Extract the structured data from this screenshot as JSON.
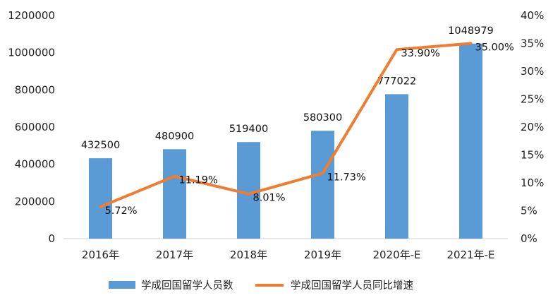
{
  "chart_data": {
    "type": "bar+line",
    "categories": [
      "2016年",
      "2017年",
      "2018年",
      "2019年",
      "2020年-E",
      "2021年-E"
    ],
    "series": [
      {
        "name": "学成回国留学人员数",
        "type": "bar",
        "axis": "left",
        "values": [
          432500,
          480900,
          519400,
          580300,
          777022,
          1048979
        ],
        "labels": [
          "432500",
          "480900",
          "519400",
          "580300",
          "777022",
          "1048979"
        ],
        "color": "#5b9bd5"
      },
      {
        "name": "学成回国留学人员同比增速",
        "type": "line",
        "axis": "right",
        "values": [
          5.72,
          11.19,
          8.01,
          11.73,
          33.9,
          35.0
        ],
        "labels": [
          "5.72%",
          "11.19%",
          "8.01%",
          "11.73%",
          "33.90%",
          "35.00%"
        ],
        "color": "#ed7d31"
      }
    ],
    "y_left": {
      "ylim": [
        0,
        1200000
      ],
      "ticks": [
        "0",
        "200000",
        "400000",
        "600000",
        "800000",
        "1000000",
        "1200000"
      ]
    },
    "y_right": {
      "ylim": [
        0,
        40
      ],
      "ticks": [
        "0%",
        "5%",
        "10%",
        "15%",
        "20%",
        "25%",
        "30%",
        "35%",
        "40%"
      ]
    },
    "grid": false,
    "legend": "bottom"
  }
}
